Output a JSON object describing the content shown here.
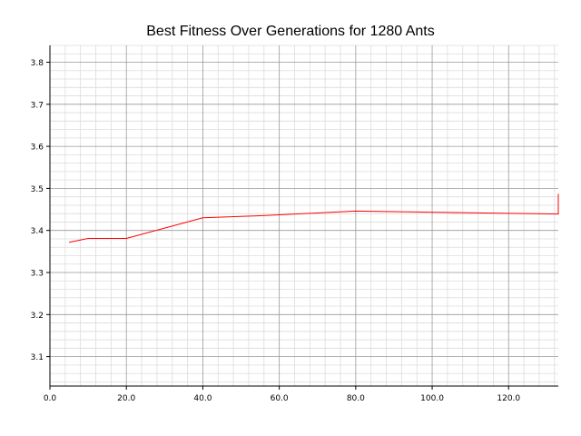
{
  "chart_data": {
    "type": "line",
    "title": "Best Fitness Over Generations for 1280 Ants",
    "xlabel": "",
    "ylabel": "",
    "xlim": [
      0,
      133
    ],
    "ylim": [
      3.03,
      3.84
    ],
    "x_ticks": [
      0,
      20,
      40,
      60,
      80,
      100,
      120
    ],
    "x_tick_labels": [
      "0.0",
      "20.0",
      "40.0",
      "60.0",
      "80.0",
      "100.0",
      "120.0"
    ],
    "y_ticks": [
      3.1,
      3.2,
      3.3,
      3.4,
      3.5,
      3.6,
      3.7,
      3.8
    ],
    "y_tick_labels": [
      "3.1",
      "3.2",
      "3.3",
      "3.4",
      "3.5",
      "3.6",
      "3.7",
      "3.8"
    ],
    "grid": true,
    "series": [
      {
        "color": "#ff0000",
        "x": [
          5,
          10,
          20,
          40,
          55,
          80,
          133,
          133
        ],
        "y": [
          3.372,
          3.381,
          3.381,
          3.43,
          3.435,
          3.446,
          3.439,
          3.487
        ]
      }
    ]
  }
}
